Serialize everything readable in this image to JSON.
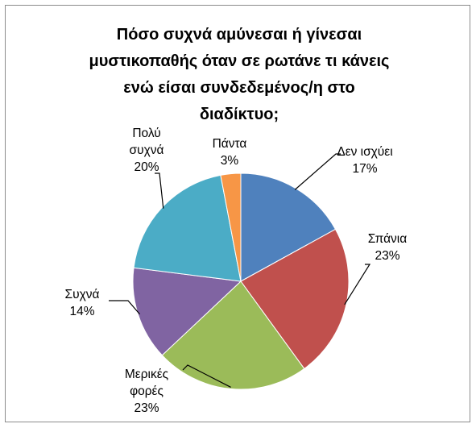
{
  "chart_data": {
    "type": "pie",
    "title_lines": [
      "Πόσο συχνά αμύνεσαι ή γίνεσαι",
      "μυστικοπαθής όταν σε ρωτάνε τι κάνεις",
      "ενώ είσαι συνδεδεμένος/η στο",
      "διαδίκτυο;"
    ],
    "categories": [
      "Δεν ισχύει",
      "Σπάνια",
      "Μερικές φορές",
      "Συχνά",
      "Πολύ συχνά",
      "Πάντα"
    ],
    "values": [
      17,
      23,
      23,
      14,
      20,
      3
    ],
    "value_labels": [
      "17%",
      "23%",
      "23%",
      "14%",
      "20%",
      "3%"
    ],
    "label_lines": [
      [
        "Δεν ισχύει"
      ],
      [
        "Σπάνια"
      ],
      [
        "Μερικές",
        "φορές"
      ],
      [
        "Συχνά"
      ],
      [
        "Πολύ",
        "συχνά"
      ],
      [
        "Πάντα"
      ]
    ],
    "colors": [
      "#4f81bd",
      "#c0504d",
      "#9bbb59",
      "#8064a2",
      "#4bacc6",
      "#f79646"
    ],
    "start_angle": "12 o'clock",
    "direction": "clockwise",
    "legend": "none"
  }
}
